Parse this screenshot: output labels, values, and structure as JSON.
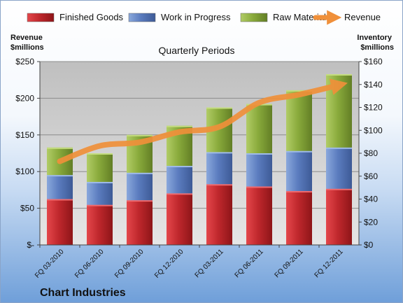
{
  "chart_data": {
    "type": "bar",
    "subtype": "stacked-bar-with-line",
    "title": "Quarterly Periods",
    "company": "Chart Industries",
    "left_axis_label": [
      "Revenue",
      "$millions"
    ],
    "right_axis_label": [
      "Inventory",
      "$millions"
    ],
    "categories": [
      "FQ 03-2010",
      "FQ 06-2010",
      "FQ 09-2010",
      "FQ 12-2010",
      "FQ 03-2011",
      "FQ 06-2011",
      "FQ 09-2011",
      "FQ 12-2011"
    ],
    "series": [
      {
        "name": "Finished Goods",
        "axis": "right",
        "color": "#c0282d",
        "values": [
          40,
          35,
          39,
          45,
          53,
          51,
          47,
          49
        ]
      },
      {
        "name": "Work in Progress",
        "axis": "right",
        "color": "#5b7cbf",
        "values": [
          21,
          20,
          24,
          24,
          28,
          29,
          35,
          36
        ]
      },
      {
        "name": "Raw Materials",
        "axis": "right",
        "color": "#8aab3c",
        "values": [
          24,
          25,
          33,
          35,
          39,
          43,
          53,
          64
        ]
      },
      {
        "name": "Revenue",
        "axis": "left",
        "type": "line",
        "color": "#f0903a",
        "values": [
          114,
          135,
          140,
          154,
          161,
          194,
          205,
          218
        ]
      }
    ],
    "left_axis": {
      "min": 0,
      "max": 250,
      "ticks": [
        "$-",
        "$50",
        "$100",
        "$150",
        "$200",
        "$250"
      ]
    },
    "right_axis": {
      "min": 0,
      "max": 160,
      "ticks": [
        "$0",
        "$20",
        "$40",
        "$60",
        "$80",
        "$100",
        "$120",
        "$140",
        "$160"
      ]
    },
    "legend_position": "top",
    "grid": true
  }
}
